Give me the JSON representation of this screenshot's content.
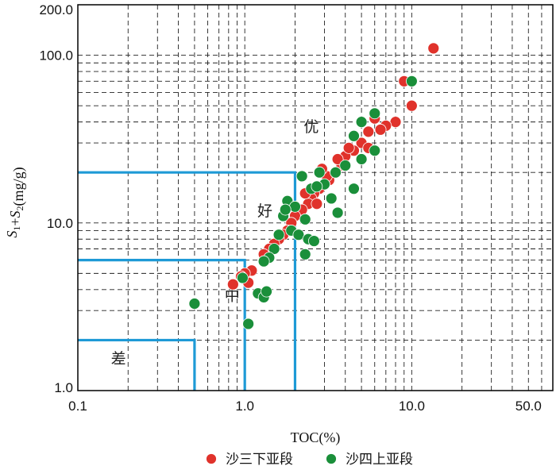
{
  "chart_data": {
    "type": "scatter",
    "xscale": "log",
    "yscale": "log",
    "xlim": [
      0.1,
      70
    ],
    "ylim": [
      1.0,
      200.0
    ],
    "xlabel": "TOC(%)",
    "ylabel": "S1+S2(mg/g)",
    "x_tick_labels": [
      "0.1",
      "1.0",
      "10.0",
      "50.0"
    ],
    "x_tick_values": [
      0.1,
      1.0,
      10.0,
      50.0
    ],
    "y_tick_labels": [
      "1.0",
      "10.0",
      "100.0",
      "200.0"
    ],
    "y_tick_values": [
      1.0,
      10.0,
      100.0,
      200.0
    ],
    "grid": true,
    "legend_position": "bottom",
    "zones": [
      {
        "label": "差",
        "toc_max": 0.5,
        "s1s2_max": 2.0
      },
      {
        "label": "中",
        "toc_max": 1.0,
        "s1s2_max": 6.0
      },
      {
        "label": "好",
        "toc_max": 2.0,
        "s1s2_max": 20.0
      },
      {
        "label": "优"
      }
    ],
    "zone_line_color": "#1e9ad6",
    "series": [
      {
        "name": "沙三下亚段",
        "color": "#e0322b",
        "points": [
          [
            13.5,
            110
          ],
          [
            9.0,
            70
          ],
          [
            10.0,
            50
          ],
          [
            8.0,
            40
          ],
          [
            7.0,
            38
          ],
          [
            6.5,
            36
          ],
          [
            6.0,
            42
          ],
          [
            5.5,
            35
          ],
          [
            5.0,
            30
          ],
          [
            5.5,
            28
          ],
          [
            4.5,
            27
          ],
          [
            4.0,
            25
          ],
          [
            3.8,
            22
          ],
          [
            3.5,
            20
          ],
          [
            3.2,
            18
          ],
          [
            3.0,
            17
          ],
          [
            2.8,
            16
          ],
          [
            2.6,
            15
          ],
          [
            2.5,
            14
          ],
          [
            2.4,
            13
          ],
          [
            2.2,
            12
          ],
          [
            2.0,
            11
          ],
          [
            1.9,
            10
          ],
          [
            1.8,
            9
          ],
          [
            1.7,
            8.5
          ],
          [
            1.6,
            8
          ],
          [
            1.5,
            7.5
          ],
          [
            1.4,
            7
          ],
          [
            1.3,
            6.5
          ],
          [
            1.1,
            5.2
          ],
          [
            1.0,
            5.0
          ],
          [
            0.95,
            4.8
          ],
          [
            1.05,
            4.4
          ],
          [
            0.85,
            4.3
          ],
          [
            3.1,
            19
          ],
          [
            2.9,
            21
          ],
          [
            3.6,
            24
          ],
          [
            4.2,
            28
          ],
          [
            2.7,
            13
          ],
          [
            2.3,
            15
          ]
        ]
      },
      {
        "name": "沙四上亚段",
        "color": "#1a8f3a",
        "points": [
          [
            10.0,
            70
          ],
          [
            6.0,
            45
          ],
          [
            5.0,
            40
          ],
          [
            4.5,
            33
          ],
          [
            6.0,
            27
          ],
          [
            5.0,
            24
          ],
          [
            4.0,
            22
          ],
          [
            3.5,
            20
          ],
          [
            3.0,
            17
          ],
          [
            2.8,
            20
          ],
          [
            2.5,
            16
          ],
          [
            2.2,
            19
          ],
          [
            1.8,
            13.5
          ],
          [
            2.0,
            12.5
          ],
          [
            1.7,
            11
          ],
          [
            2.3,
            10.5
          ],
          [
            1.9,
            9
          ],
          [
            2.1,
            8.5
          ],
          [
            1.6,
            8.5
          ],
          [
            2.4,
            8
          ],
          [
            2.6,
            7.8
          ],
          [
            1.5,
            7
          ],
          [
            1.4,
            6.2
          ],
          [
            1.3,
            5.9
          ],
          [
            2.3,
            6.5
          ],
          [
            1.2,
            3.8
          ],
          [
            1.3,
            3.6
          ],
          [
            0.97,
            4.7
          ],
          [
            1.35,
            3.9
          ],
          [
            0.5,
            3.3
          ],
          [
            1.05,
            2.5
          ],
          [
            3.6,
            11.5
          ],
          [
            4.5,
            16
          ],
          [
            3.3,
            14
          ],
          [
            2.7,
            16.5
          ],
          [
            1.75,
            12
          ]
        ]
      }
    ]
  }
}
